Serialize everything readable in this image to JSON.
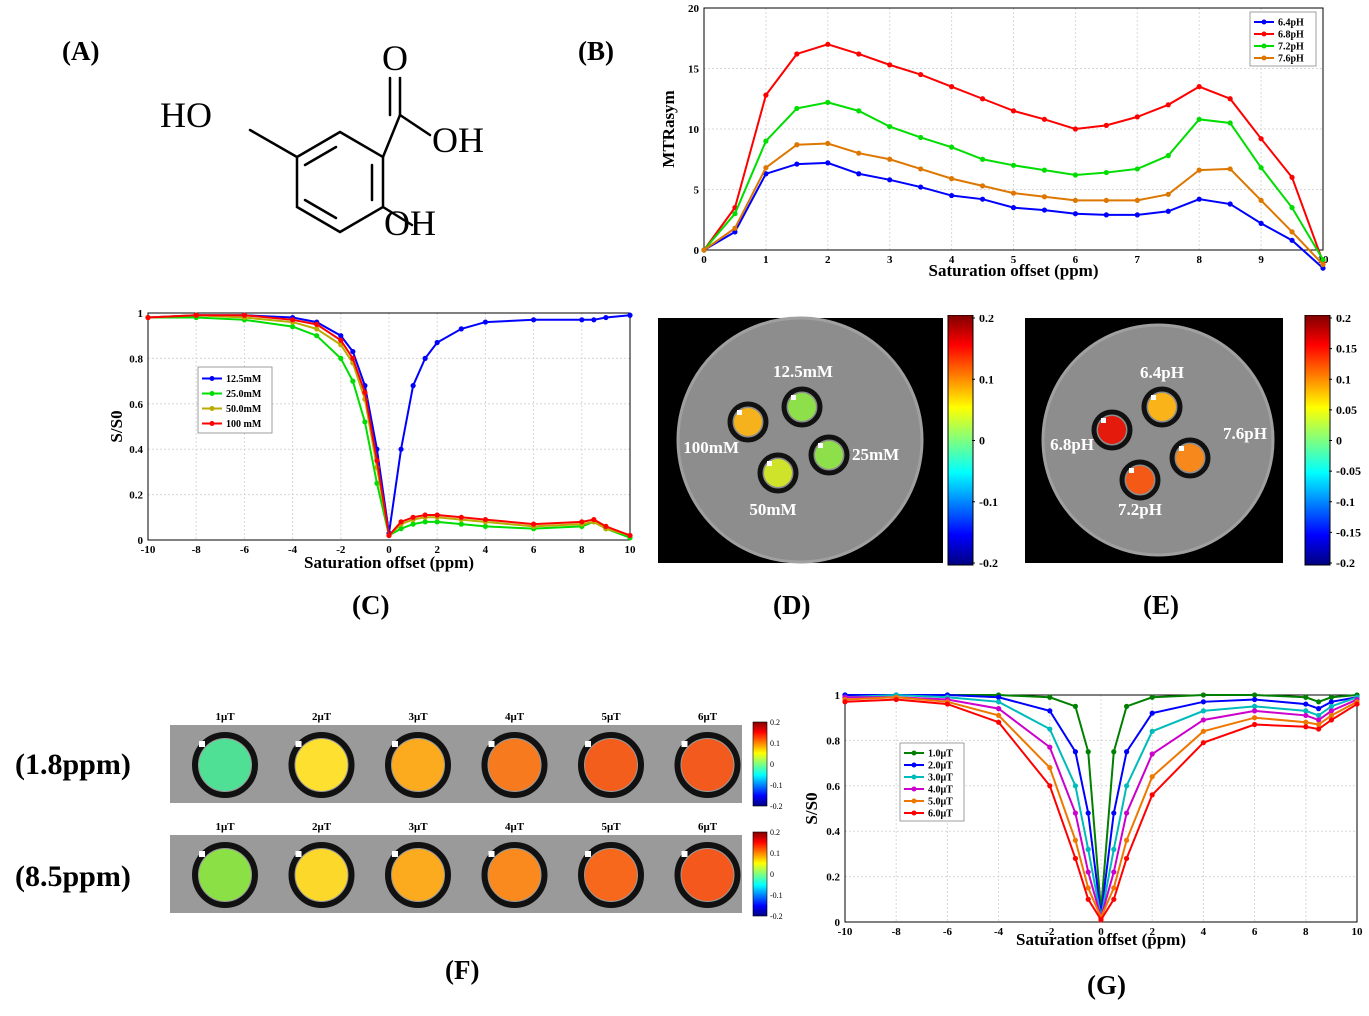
{
  "panels": {
    "A": "(A)",
    "B": "(B)",
    "C": "(C)",
    "D": "(D)",
    "E": "(E)",
    "F": "(F)",
    "G": "(G)"
  },
  "molecule": {
    "ho1": "HO",
    "o": "O",
    "oh1": "OH",
    "oh2": "OH"
  },
  "chart_data": [
    {
      "id": "B",
      "type": "line",
      "xlabel": "Saturation offset (ppm)",
      "ylabel": "MTRasym",
      "xlim": [
        0,
        10
      ],
      "ylim": [
        0,
        20
      ],
      "xticks": [
        "0",
        "1",
        "2",
        "3",
        "4",
        "5",
        "6",
        "7",
        "8",
        "9",
        "10"
      ],
      "yticks": [
        "0",
        "5",
        "10",
        "15",
        "20"
      ],
      "legend_position": "top-right",
      "series": [
        {
          "name": "6.4pH",
          "color": "#0000ff",
          "x": [
            0,
            0.5,
            1,
            1.5,
            2,
            2.5,
            3,
            3.5,
            4,
            4.5,
            5,
            5.5,
            6,
            6.5,
            7,
            7.5,
            8,
            8.5,
            9,
            9.5,
            10
          ],
          "y": [
            0,
            1.5,
            6.3,
            7.1,
            7.2,
            6.3,
            5.8,
            5.2,
            4.5,
            4.2,
            3.5,
            3.3,
            3.0,
            2.9,
            2.9,
            3.2,
            4.2,
            3.8,
            2.2,
            0.8,
            -1.5
          ]
        },
        {
          "name": "6.8pH",
          "color": "#ff0000",
          "x": [
            0,
            0.5,
            1,
            1.5,
            2,
            2.5,
            3,
            3.5,
            4,
            4.5,
            5,
            5.5,
            6,
            6.5,
            7,
            7.5,
            8,
            8.5,
            9,
            9.5,
            10
          ],
          "y": [
            0,
            3.5,
            12.8,
            16.2,
            17.0,
            16.2,
            15.3,
            14.5,
            13.5,
            12.5,
            11.5,
            10.8,
            10.0,
            10.3,
            11.0,
            12.0,
            13.5,
            12.5,
            9.2,
            6.0,
            -1.0
          ]
        },
        {
          "name": "7.2pH",
          "color": "#00dd00",
          "x": [
            0,
            0.5,
            1,
            1.5,
            2,
            2.5,
            3,
            3.5,
            4,
            4.5,
            5,
            5.5,
            6,
            6.5,
            7,
            7.5,
            8,
            8.5,
            9,
            9.5,
            10
          ],
          "y": [
            0,
            3.0,
            9.0,
            11.7,
            12.2,
            11.5,
            10.2,
            9.3,
            8.5,
            7.5,
            7.0,
            6.6,
            6.2,
            6.4,
            6.7,
            7.8,
            10.8,
            10.5,
            6.8,
            3.5,
            -0.8
          ]
        },
        {
          "name": "7.6pH",
          "color": "#dd7700",
          "x": [
            0,
            0.5,
            1,
            1.5,
            2,
            2.5,
            3,
            3.5,
            4,
            4.5,
            5,
            5.5,
            6,
            6.5,
            7,
            7.5,
            8,
            8.5,
            9,
            9.5,
            10
          ],
          "y": [
            0,
            1.8,
            6.8,
            8.7,
            8.8,
            8.0,
            7.5,
            6.7,
            5.9,
            5.3,
            4.7,
            4.4,
            4.1,
            4.1,
            4.1,
            4.6,
            6.6,
            6.7,
            4.1,
            1.5,
            -1.2
          ]
        }
      ]
    },
    {
      "id": "C",
      "type": "line",
      "xlabel": "Saturation offset (ppm)",
      "ylabel": "S/S0",
      "xlim": [
        -10,
        10
      ],
      "ylim": [
        0,
        1
      ],
      "xticks": [
        "-10",
        "-8",
        "-6",
        "-4",
        "-2",
        "0",
        "2",
        "4",
        "6",
        "8",
        "10"
      ],
      "yticks": [
        "0",
        "0.2",
        "0.4",
        "0.6",
        "0.8",
        "1"
      ],
      "legend_position": "left",
      "series": [
        {
          "name": "12.5mM",
          "color": "#0000ff",
          "x": [
            -10,
            -8,
            -6,
            -4,
            -3,
            -2,
            -1.5,
            -1,
            -0.5,
            0,
            0.5,
            1,
            1.5,
            2,
            3,
            4,
            6,
            8,
            8.5,
            9,
            10
          ],
          "y": [
            0.98,
            0.99,
            0.99,
            0.98,
            0.96,
            0.9,
            0.83,
            0.68,
            0.4,
            0.03,
            0.4,
            0.68,
            0.8,
            0.87,
            0.93,
            0.96,
            0.97,
            0.97,
            0.97,
            0.98,
            0.99
          ]
        },
        {
          "name": "25.0mM",
          "color": "#00dd00",
          "x": [
            -10,
            -8,
            -6,
            -4,
            -3,
            -2,
            -1.5,
            -1,
            -0.5,
            0,
            0.5,
            1,
            1.5,
            2,
            3,
            4,
            6,
            8,
            8.5,
            9,
            10
          ],
          "y": [
            0.98,
            0.98,
            0.97,
            0.94,
            0.9,
            0.8,
            0.7,
            0.52,
            0.25,
            0.02,
            0.05,
            0.07,
            0.08,
            0.08,
            0.07,
            0.06,
            0.05,
            0.06,
            0.08,
            0.05,
            0.01
          ]
        },
        {
          "name": "50.0mM",
          "color": "#bbaa00",
          "x": [
            -10,
            -8,
            -6,
            -4,
            -3,
            -2,
            -1.5,
            -1,
            -0.5,
            0,
            0.5,
            1,
            1.5,
            2,
            3,
            4,
            6,
            8,
            8.5,
            9,
            10
          ],
          "y": [
            0.98,
            0.99,
            0.98,
            0.96,
            0.93,
            0.86,
            0.78,
            0.62,
            0.32,
            0.02,
            0.07,
            0.09,
            0.1,
            0.1,
            0.09,
            0.08,
            0.06,
            0.07,
            0.08,
            0.05,
            0.02
          ]
        },
        {
          "name": "100 mM",
          "color": "#ff0000",
          "x": [
            -10,
            -8,
            -6,
            -4,
            -3,
            -2,
            -1.5,
            -1,
            -0.5,
            0,
            0.5,
            1,
            1.5,
            2,
            3,
            4,
            6,
            8,
            8.5,
            9,
            10
          ],
          "y": [
            0.98,
            0.99,
            0.99,
            0.97,
            0.95,
            0.88,
            0.8,
            0.65,
            0.35,
            0.02,
            0.08,
            0.1,
            0.11,
            0.11,
            0.1,
            0.09,
            0.07,
            0.08,
            0.09,
            0.06,
            0.02
          ]
        }
      ]
    },
    {
      "id": "G",
      "type": "line",
      "xlabel": "Saturation offset (ppm)",
      "ylabel": "S/S0",
      "xlim": [
        -10,
        10
      ],
      "ylim": [
        0,
        1
      ],
      "xticks": [
        "-10",
        "-8",
        "-6",
        "-4",
        "-2",
        "0",
        "2",
        "4",
        "6",
        "8",
        "10"
      ],
      "yticks": [
        "0",
        "0.2",
        "0.4",
        "0.6",
        "0.8",
        "1"
      ],
      "legend_position": "left",
      "series": [
        {
          "name": "1.0μT",
          "color": "#008000",
          "x": [
            -10,
            -8,
            -6,
            -4,
            -2,
            -1,
            -0.5,
            0,
            0.5,
            1,
            2,
            4,
            6,
            8,
            8.5,
            9,
            10
          ],
          "y": [
            1.0,
            1.0,
            1.0,
            1.0,
            0.99,
            0.95,
            0.75,
            0.05,
            0.75,
            0.95,
            0.99,
            1.0,
            1.0,
            0.99,
            0.97,
            0.99,
            1.0
          ]
        },
        {
          "name": "2.0μT",
          "color": "#0000ff",
          "x": [
            -10,
            -8,
            -6,
            -4,
            -2,
            -1,
            -0.5,
            0,
            0.5,
            1,
            2,
            4,
            6,
            8,
            8.5,
            9,
            10
          ],
          "y": [
            1.0,
            1.0,
            1.0,
            0.99,
            0.93,
            0.75,
            0.48,
            0.03,
            0.48,
            0.75,
            0.92,
            0.97,
            0.98,
            0.96,
            0.94,
            0.97,
            0.99
          ]
        },
        {
          "name": "3.0μT",
          "color": "#00bbbb",
          "x": [
            -10,
            -8,
            -6,
            -4,
            -2,
            -1,
            -0.5,
            0,
            0.5,
            1,
            2,
            4,
            6,
            8,
            8.5,
            9,
            10
          ],
          "y": [
            0.99,
            1.0,
            0.99,
            0.97,
            0.85,
            0.6,
            0.32,
            0.02,
            0.32,
            0.6,
            0.84,
            0.93,
            0.95,
            0.93,
            0.91,
            0.95,
            0.99
          ]
        },
        {
          "name": "4.0μT",
          "color": "#cc00cc",
          "x": [
            -10,
            -8,
            -6,
            -4,
            -2,
            -1,
            -0.5,
            0,
            0.5,
            1,
            2,
            4,
            6,
            8,
            8.5,
            9,
            10
          ],
          "y": [
            0.99,
            0.99,
            0.98,
            0.94,
            0.77,
            0.48,
            0.22,
            0.02,
            0.22,
            0.48,
            0.74,
            0.89,
            0.93,
            0.91,
            0.89,
            0.93,
            0.98
          ]
        },
        {
          "name": "5.0μT",
          "color": "#ee7700",
          "x": [
            -10,
            -8,
            -6,
            -4,
            -2,
            -1,
            -0.5,
            0,
            0.5,
            1,
            2,
            4,
            6,
            8,
            8.5,
            9,
            10
          ],
          "y": [
            0.98,
            0.99,
            0.97,
            0.91,
            0.68,
            0.36,
            0.15,
            0.02,
            0.15,
            0.36,
            0.64,
            0.84,
            0.9,
            0.88,
            0.87,
            0.91,
            0.97
          ]
        },
        {
          "name": "6.0μT",
          "color": "#ff0000",
          "x": [
            -10,
            -8,
            -6,
            -4,
            -2,
            -1,
            -0.5,
            0,
            0.5,
            1,
            2,
            4,
            6,
            8,
            8.5,
            9,
            10
          ],
          "y": [
            0.97,
            0.98,
            0.96,
            0.88,
            0.6,
            0.28,
            0.1,
            0.01,
            0.1,
            0.28,
            0.56,
            0.79,
            0.87,
            0.86,
            0.85,
            0.89,
            0.96
          ]
        }
      ]
    }
  ],
  "phantom_D": {
    "labels": [
      "12.5mM",
      "100mM",
      "25mM",
      "50mM"
    ],
    "colorbar": {
      "min": -0.2,
      "max": 0.2,
      "ticks": [
        "0.2",
        "0.1",
        "0",
        "-0.1",
        "-0.2"
      ]
    },
    "vial_colors": [
      "#8ee04a",
      "#f5b21c",
      "#8ee04a",
      "#cfe32a"
    ]
  },
  "phantom_E": {
    "labels": [
      "6.4pH",
      "7.6pH",
      "6.8pH",
      "7.2pH"
    ],
    "colorbar": {
      "min": -0.2,
      "max": 0.2,
      "ticks": [
        "0.2",
        "0.15",
        "0.1",
        "0.05",
        "0",
        "-0.05",
        "-0.1",
        "-0.15",
        "-0.2"
      ]
    },
    "vial_colors": [
      "#fbb31a",
      "#f7881c",
      "#e31a0c",
      "#f45a16"
    ]
  },
  "panel_F": {
    "rows": [
      {
        "label": "(1.8ppm)",
        "colors": [
          "#4fe096",
          "#fde030",
          "#fcab1e",
          "#f77a1e",
          "#f45e1c",
          "#f35a1e"
        ]
      },
      {
        "label": "(8.5ppm)",
        "colors": [
          "#8ae044",
          "#fbd82a",
          "#fcab1e",
          "#fa8a1e",
          "#f7681c",
          "#f4581c"
        ]
      }
    ],
    "fields": [
      "1μT",
      "2μT",
      "3μT",
      "4μT",
      "5μT",
      "6μT"
    ],
    "colorbar_ticks": [
      "0.2",
      "0.1",
      "0",
      "-0.1",
      "-0.2"
    ]
  }
}
